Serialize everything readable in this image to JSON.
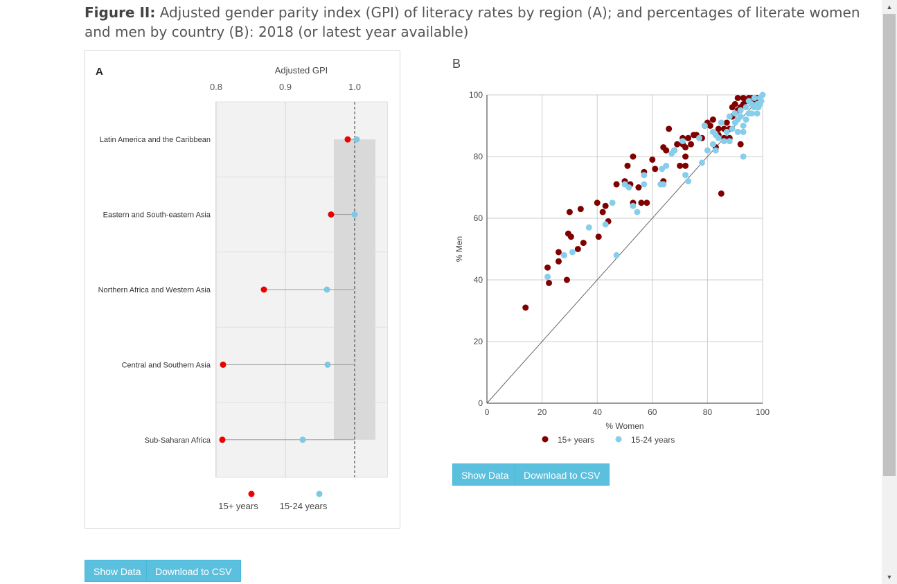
{
  "title": {
    "bold": "Figure II:",
    "rest": " Adjusted gender parity index (GPI) of literacy rates by region (A); and percentages of literate women and men by country (B): 2018 (or latest year available)"
  },
  "panelA": {
    "panel_label": "A",
    "buttons": {
      "show": "Show Data",
      "csv": "Download to CSV"
    }
  },
  "panelB": {
    "panel_label": "B",
    "buttons": {
      "show": "Show Data",
      "csv": "Download to CSV"
    }
  },
  "colors": {
    "a_15plus": "#ee0000",
    "a_15_24": "#7ec8e3",
    "b_15plus": "#800000",
    "b_15_24": "#87ceeb",
    "button": "#5bc0de"
  },
  "chart_data": [
    {
      "type": "dumbbell",
      "xlabel": "Adjusted GPI",
      "xlim": [
        0.8,
        1.06
      ],
      "xticks": [
        0.8,
        0.9,
        1.0
      ],
      "xtick_labels": [
        "0.8",
        "0.9",
        "1.0"
      ],
      "reference_line": 1.0,
      "parity_band": [
        0.97,
        1.03
      ],
      "categories": [
        "Latin America and the Caribbean",
        "Eastern and South-eastern Asia",
        "Northern Africa and Western Asia",
        "Central and Southern Asia",
        "Sub-Saharan Africa"
      ],
      "series": [
        {
          "name": "15+ years",
          "values": [
            0.99,
            0.966,
            0.869,
            0.81,
            0.809
          ]
        },
        {
          "name": "15-24 years",
          "values": [
            1.003,
            1.0,
            0.96,
            0.961,
            0.925
          ]
        }
      ],
      "legend_position": "bottom"
    },
    {
      "type": "scatter",
      "xlabel": "% Women",
      "ylabel": "% Men",
      "xlim": [
        0,
        100
      ],
      "ylim": [
        0,
        100
      ],
      "xticks": [
        0,
        20,
        40,
        60,
        80,
        100
      ],
      "yticks": [
        0,
        20,
        40,
        60,
        80,
        100
      ],
      "grid": true,
      "diagonal_line": true,
      "legend_position": "bottom",
      "series": [
        {
          "name": "15+ years",
          "points": [
            [
              14,
              31
            ],
            [
              22,
              44
            ],
            [
              22.5,
              39
            ],
            [
              26,
              49
            ],
            [
              26,
              46
            ],
            [
              29,
              40
            ],
            [
              29.5,
              55
            ],
            [
              30,
              62
            ],
            [
              30.5,
              54
            ],
            [
              33,
              50
            ],
            [
              34,
              63
            ],
            [
              35,
              52
            ],
            [
              40,
              65
            ],
            [
              40.5,
              54
            ],
            [
              42,
              62
            ],
            [
              43,
              64
            ],
            [
              44,
              59
            ],
            [
              47,
              71
            ],
            [
              50,
              72
            ],
            [
              51,
              77
            ],
            [
              52,
              71
            ],
            [
              53,
              80
            ],
            [
              53,
              65
            ],
            [
              55,
              70
            ],
            [
              56,
              65
            ],
            [
              57,
              75
            ],
            [
              58,
              65
            ],
            [
              60,
              79
            ],
            [
              61,
              76
            ],
            [
              64,
              72
            ],
            [
              64,
              83
            ],
            [
              65,
              82
            ],
            [
              66,
              89
            ],
            [
              68,
              82
            ],
            [
              69,
              84
            ],
            [
              70,
              77
            ],
            [
              71,
              84
            ],
            [
              71,
              86
            ],
            [
              72,
              77
            ],
            [
              72,
              80
            ],
            [
              72,
              83
            ],
            [
              73,
              86
            ],
            [
              74,
              84
            ],
            [
              75,
              87
            ],
            [
              76,
              87
            ],
            [
              78,
              86
            ],
            [
              79,
              90
            ],
            [
              80,
              91
            ],
            [
              81,
              90
            ],
            [
              82,
              92
            ],
            [
              83,
              83
            ],
            [
              84,
              87
            ],
            [
              84,
              89
            ],
            [
              85,
              68
            ],
            [
              86,
              86
            ],
            [
              86,
              89
            ],
            [
              87,
              91
            ],
            [
              88,
              86
            ],
            [
              88,
              89
            ],
            [
              89,
              93
            ],
            [
              89,
              96
            ],
            [
              90,
              94
            ],
            [
              90,
              97
            ],
            [
              91,
              95
            ],
            [
              91,
              99
            ],
            [
              92,
              84
            ],
            [
              92,
              96
            ],
            [
              93,
              97
            ],
            [
              93,
              99
            ],
            [
              94,
              98
            ],
            [
              95,
              99
            ],
            [
              96,
              99
            ],
            [
              97,
              98
            ],
            [
              98,
              99
            ]
          ]
        },
        {
          "name": "15-24 years",
          "points": [
            [
              22,
              41
            ],
            [
              28,
              48
            ],
            [
              31,
              49
            ],
            [
              37,
              57
            ],
            [
              43,
              58
            ],
            [
              45.5,
              65
            ],
            [
              47,
              48
            ],
            [
              50,
              71
            ],
            [
              51.5,
              70
            ],
            [
              53,
              64
            ],
            [
              54.5,
              62
            ],
            [
              57,
              74
            ],
            [
              57,
              71
            ],
            [
              63,
              71
            ],
            [
              63.5,
              76
            ],
            [
              64,
              71
            ],
            [
              65,
              77
            ],
            [
              67,
              81
            ],
            [
              68,
              82
            ],
            [
              71,
              85
            ],
            [
              72,
              74
            ],
            [
              73,
              72
            ],
            [
              77,
              86
            ],
            [
              78,
              78
            ],
            [
              79,
              90
            ],
            [
              80,
              82
            ],
            [
              82,
              88
            ],
            [
              82,
              84
            ],
            [
              83,
              87
            ],
            [
              83,
              82
            ],
            [
              84,
              86
            ],
            [
              85,
              91
            ],
            [
              86,
              85
            ],
            [
              87,
              88
            ],
            [
              88,
              85
            ],
            [
              88,
              93
            ],
            [
              89,
              89
            ],
            [
              90,
              91
            ],
            [
              90,
              94
            ],
            [
              91,
              88
            ],
            [
              91,
              92
            ],
            [
              92,
              95
            ],
            [
              92,
              93
            ],
            [
              93,
              88
            ],
            [
              93,
              90
            ],
            [
              93,
              80
            ],
            [
              94,
              92
            ],
            [
              94,
              96
            ],
            [
              95,
              94
            ],
            [
              95,
              98
            ],
            [
              96,
              94
            ],
            [
              96,
              97
            ],
            [
              97,
              96
            ],
            [
              97,
              99
            ],
            [
              98,
              97
            ],
            [
              98,
              94
            ],
            [
              98.5,
              96
            ],
            [
              99,
              99
            ],
            [
              99,
              97
            ],
            [
              99.5,
              98
            ],
            [
              100,
              100
            ]
          ]
        }
      ]
    }
  ]
}
